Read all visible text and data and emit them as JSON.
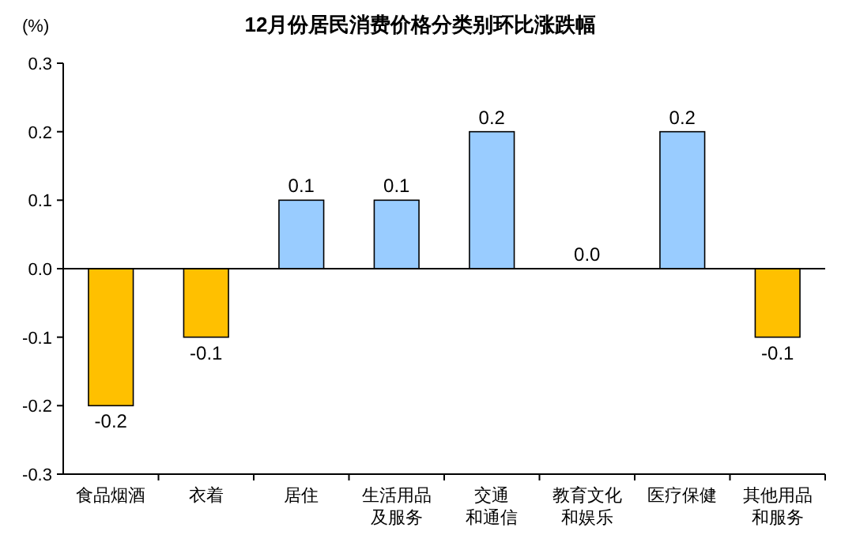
{
  "chart_data": {
    "type": "bar",
    "title": "12月份居民消费价格分类别环比涨跌幅",
    "ylabel": "(%)",
    "categories": [
      "食品烟酒",
      "衣着",
      "居住",
      "生活用品及服务",
      "交通和通信",
      "教育文化和娱乐",
      "医疗保健",
      "其他用品和服务"
    ],
    "values": [
      -0.2,
      -0.1,
      0.1,
      0.1,
      0.2,
      0.0,
      0.2,
      -0.1
    ],
    "colors": [
      "#ffc000",
      "#ffc000",
      "#99ccff",
      "#99ccff",
      "#99ccff",
      "#99ccff",
      "#99ccff",
      "#ffc000"
    ],
    "value_labels": [
      "-0.2",
      "-0.1",
      "0.1",
      "0.1",
      "0.2",
      "0.0",
      "0.2",
      "-0.1"
    ],
    "ylim": [
      -0.3,
      0.3
    ],
    "yticks": [
      -0.3,
      -0.2,
      -0.1,
      {
        "value": 0,
        "label": "0.0"
      },
      0.1,
      0.2,
      0.3
    ]
  }
}
